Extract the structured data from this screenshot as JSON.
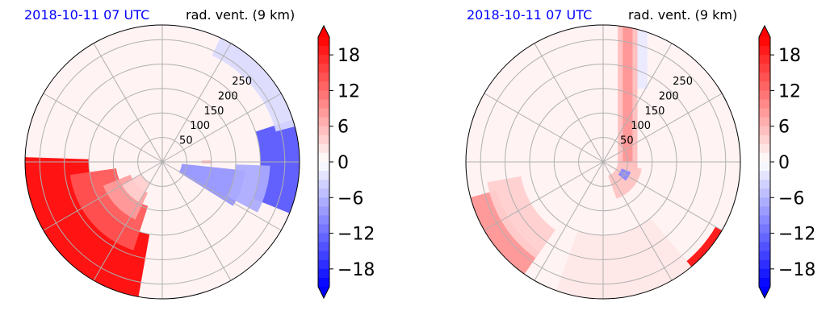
{
  "chart_data": [
    {
      "type": "heatmap",
      "projection": "polar",
      "timestamp": "2018-10-11 07 UTC",
      "title": "rad. vent. (9 km)",
      "radial_ticks": [
        50,
        100,
        150,
        200,
        250
      ],
      "radial_range": [
        0,
        280
      ],
      "colorbar": {
        "ticks": [
          18,
          12,
          6,
          0,
          -6,
          -12,
          -18
        ],
        "tick_labels": [
          "18",
          "12",
          "6",
          "0",
          "−6",
          "−12",
          "−18"
        ],
        "range": [
          -21,
          21
        ],
        "extend": "both",
        "cmap": "bwr"
      },
      "features": [
        {
          "shape": "sector",
          "value": 22,
          "r0": 150,
          "r1": 285,
          "az0": 190,
          "az1": 272
        },
        {
          "shape": "sector",
          "value": 14,
          "r0": 95,
          "r1": 190,
          "az0": 198,
          "az1": 262
        },
        {
          "shape": "sector",
          "value": 8,
          "r0": 70,
          "r1": 130,
          "az0": 205,
          "az1": 248
        },
        {
          "shape": "sector",
          "value": 4,
          "r0": 50,
          "r1": 95,
          "az0": 210,
          "az1": 240
        },
        {
          "shape": "sector",
          "value": -9,
          "r0": 40,
          "r1": 170,
          "az0": 96,
          "az1": 122
        },
        {
          "shape": "sector",
          "value": -14,
          "r0": 200,
          "r1": 280,
          "az0": 72,
          "az1": 112
        },
        {
          "shape": "sector",
          "value": -7,
          "r0": 150,
          "r1": 220,
          "az0": 92,
          "az1": 118
        },
        {
          "shape": "sector",
          "value": -3,
          "r0": 240,
          "r1": 285,
          "az0": 25,
          "az1": 75
        },
        {
          "shape": "sector",
          "value": 5,
          "r0": 80,
          "r1": 100,
          "az0": 88,
          "az1": 92
        }
      ]
    },
    {
      "type": "heatmap",
      "projection": "polar",
      "timestamp": "2018-10-11 07 UTC",
      "title": "rad. vent. (9 km)",
      "radial_ticks": [
        50,
        100,
        150,
        200,
        250
      ],
      "radial_range": [
        0,
        280
      ],
      "colorbar": {
        "ticks": [
          18,
          12,
          6,
          0,
          -6,
          -12,
          -18
        ],
        "tick_labels": [
          "18",
          "12",
          "6",
          "0",
          "−6",
          "−12",
          "−18"
        ],
        "range": [
          -21,
          21
        ],
        "extend": "both",
        "cmap": "bwr"
      },
      "features": [
        {
          "shape": "strip",
          "value": 6,
          "x0": 30,
          "x1": 70,
          "y0": -20,
          "y1": 280
        },
        {
          "shape": "strip",
          "value": 9,
          "x0": 40,
          "x1": 60,
          "y0": 0,
          "y1": 280
        },
        {
          "shape": "strip",
          "value": -2,
          "x0": 70,
          "x1": 90,
          "y0": 150,
          "y1": 280
        },
        {
          "shape": "sector",
          "value": 9,
          "r0": 225,
          "r1": 285,
          "az0": 215,
          "az1": 255
        },
        {
          "shape": "sector",
          "value": 4,
          "r0": 170,
          "r1": 240,
          "az0": 215,
          "az1": 260
        },
        {
          "shape": "sector",
          "value": 20,
          "r0": 265,
          "r1": 285,
          "az0": 120,
          "az1": 140
        },
        {
          "shape": "sector",
          "value": 2,
          "r0": 150,
          "r1": 285,
          "az0": 140,
          "az1": 200
        },
        {
          "shape": "sector",
          "value": 5,
          "r0": 30,
          "r1": 80,
          "az0": 100,
          "az1": 160
        },
        {
          "shape": "sector",
          "value": -10,
          "r0": 40,
          "r1": 60,
          "az0": 110,
          "az1": 130
        }
      ]
    }
  ]
}
